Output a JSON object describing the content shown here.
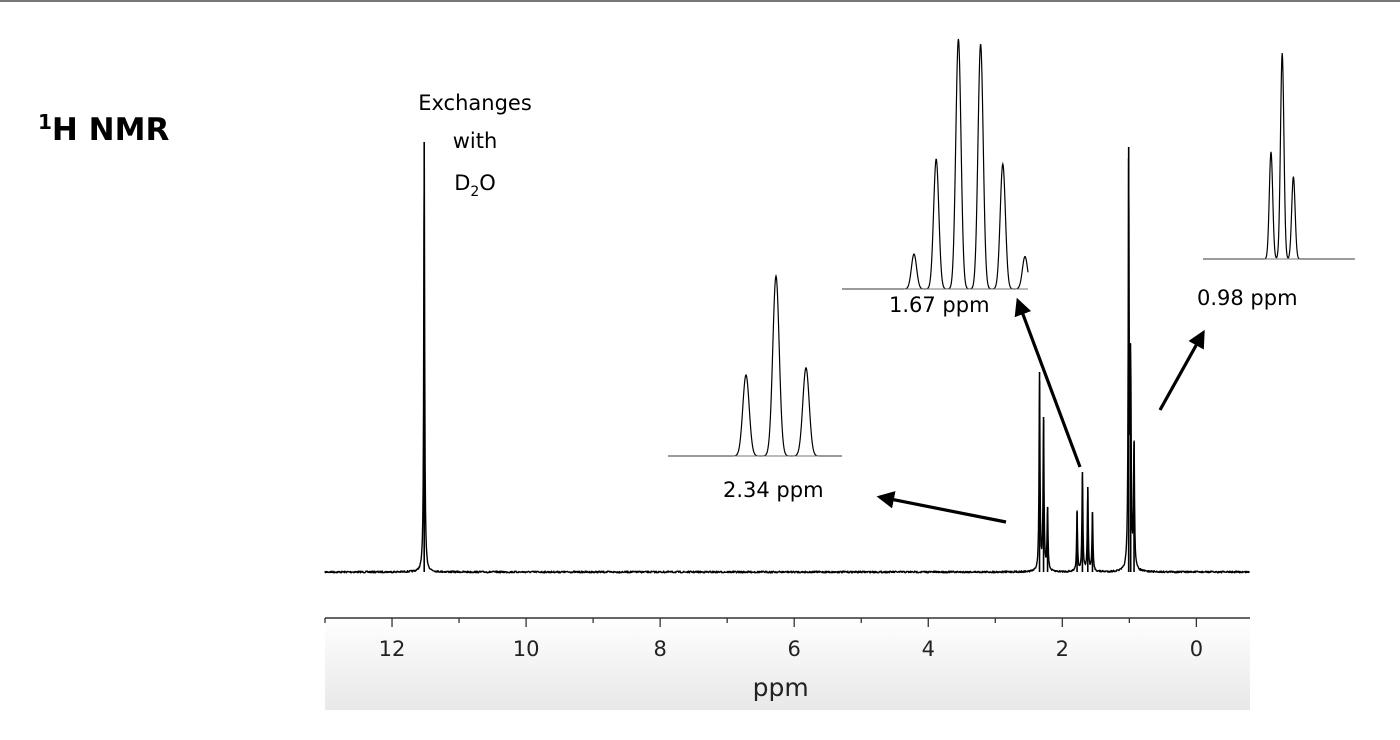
{
  "heading": {
    "superscript": "1",
    "text": "H NMR"
  },
  "chart_data": {
    "type": "line",
    "title": "",
    "xlabel": "ppm",
    "ylabel": "",
    "xlim": [
      13,
      -0.8
    ],
    "x_reversed": true,
    "x_ticks": [
      12,
      10,
      8,
      6,
      4,
      2,
      0
    ],
    "grid": false,
    "series": [
      {
        "peaks": [
          {
            "shift": 11.52,
            "height": 0.86
          },
          {
            "shift": 2.34,
            "height": 0.4
          },
          {
            "shift": 2.28,
            "height": 0.31
          },
          {
            "shift": 2.22,
            "height": 0.13
          },
          {
            "shift": 1.7,
            "height": 0.2
          },
          {
            "shift": 1.62,
            "height": 0.17
          },
          {
            "shift": 1.55,
            "height": 0.12
          },
          {
            "shift": 1.78,
            "height": 0.12
          },
          {
            "shift": 1.01,
            "height": 0.85
          },
          {
            "shift": 0.98,
            "height": 0.41
          },
          {
            "shift": 0.93,
            "height": 0.26
          }
        ]
      }
    ],
    "insets": [
      {
        "label": "2.34 ppm",
        "pattern": "triplet",
        "relative_heights": [
          0.45,
          1.0,
          0.49
        ]
      },
      {
        "label": "1.67 ppm",
        "pattern": "sextet",
        "relative_heights": [
          0.14,
          0.52,
          1.0,
          0.98,
          0.5,
          0.13
        ]
      },
      {
        "label": "0.98 ppm",
        "pattern": "triplet",
        "relative_heights": [
          0.52,
          1.0,
          0.4
        ]
      }
    ],
    "annotations": [
      {
        "lines": [
          "Exchanges",
          "with"
        ],
        "formula_base": "D",
        "formula_sub": "2",
        "formula_tail": "O",
        "target_shift": 11.52
      }
    ]
  }
}
